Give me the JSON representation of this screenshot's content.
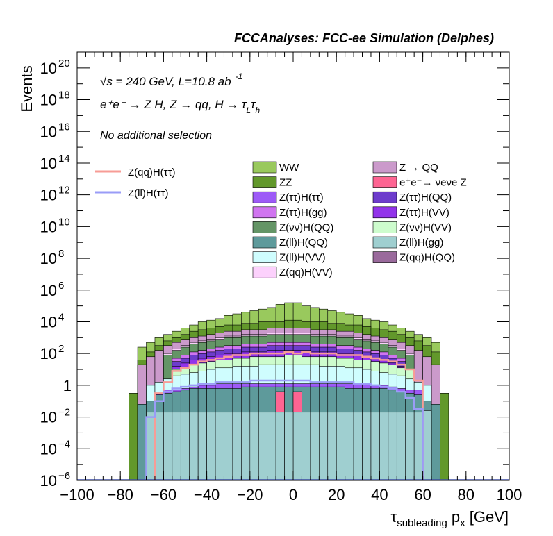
{
  "header": {
    "title": "FCCAnalyses: FCC-ee Simulation (Delphes)"
  },
  "annotations": {
    "energy": "√s = 240 GeV, L=10.8 ab",
    "energy_exp": "-1",
    "process": "e⁺e⁻ → Z H, Z → qq, H → τ",
    "process_sub1": "L",
    "process_tau": "τ",
    "process_sub2": "h",
    "selection": "No additional selection"
  },
  "chart_data": {
    "type": "bar",
    "stacked": true,
    "log_y": true,
    "xlabel": "τsubleading px [GeV]",
    "xlabel_parts": {
      "main": "τ",
      "sub": "subleading",
      "p": " p",
      "psub": "x",
      "unit": " [GeV]"
    },
    "ylabel": "Events",
    "xlim": [
      -100,
      100
    ],
    "ylim_exp": [
      -6,
      21
    ],
    "bin_width": 4,
    "x_ticks": [
      "−100",
      "−80",
      "−60",
      "−40",
      "−20",
      "0",
      "20",
      "40",
      "60",
      "80",
      "100"
    ],
    "y_ticks": [
      {
        "exp": -6,
        "label": "10",
        "sup": "−6"
      },
      {
        "exp": -4,
        "label": "10",
        "sup": "−4"
      },
      {
        "exp": -2,
        "label": "10",
        "sup": "−2"
      },
      {
        "exp": 0,
        "label": "1",
        "sup": ""
      },
      {
        "exp": 2,
        "label": "10",
        "sup": "2"
      },
      {
        "exp": 4,
        "label": "10",
        "sup": "4"
      },
      {
        "exp": 6,
        "label": "10",
        "sup": "6"
      },
      {
        "exp": 8,
        "label": "10",
        "sup": "8"
      },
      {
        "exp": 10,
        "label": "10",
        "sup": "10"
      },
      {
        "exp": 12,
        "label": "10",
        "sup": "12"
      },
      {
        "exp": 14,
        "label": "10",
        "sup": "14"
      },
      {
        "exp": 16,
        "label": "10",
        "sup": "16"
      },
      {
        "exp": 18,
        "label": "10",
        "sup": "18"
      },
      {
        "exp": 20,
        "label": "10",
        "sup": "20"
      }
    ],
    "stack_layers": [
      {
        "name": "Z(ll)H(gg)",
        "color": "#9fcfd0",
        "log10_top": {
          "-66": -1.7,
          "-62": -1.7,
          "-58": -1.7,
          "-54": -1.7,
          "-50": -1.7,
          "-46": -1.7,
          "-42": -1.7,
          "-38": -1.7,
          "-34": -1.7,
          "-30": -1.7,
          "-26": -1.7,
          "-22": -1.7,
          "-18": -1.7,
          "-14": -1.7,
          "-10": -1.7,
          "-6": -1.7,
          "-2": -1.7,
          "2": -1.7,
          "6": -1.7,
          "10": -1.7,
          "14": -1.7,
          "18": -1.7,
          "22": -1.7,
          "26": -1.7,
          "30": -1.7,
          "34": -1.7,
          "38": -1.7,
          "42": -1.7,
          "46": -1.7,
          "50": -1.7,
          "54": -1.7,
          "58": -1.7,
          "62": -1.6
        }
      },
      {
        "name": "Z(qq)H(QQ)",
        "color": "#9a6a9c",
        "log10_top": {
          "-6": -3.5
        }
      },
      {
        "name": "e+e- → νeνe Z",
        "color": "#fe6492",
        "log10_top": {
          "-6": -0.4,
          "2": -0.4
        }
      },
      {
        "name": "Z(ll)H(QQ)",
        "color": "#5e9a9b",
        "log10_top": {
          "-70": -1.2,
          "-66": -1.0,
          "-62": -0.6,
          "-58": -0.5,
          "-54": -0.4,
          "-50": -0.3,
          "-46": -0.2,
          "-42": -0.2,
          "-38": -0.2,
          "-34": -0.2,
          "-30": -0.2,
          "-26": -0.2,
          "-22": -0.1,
          "-18": -0.1,
          "-14": -0.1,
          "-10": -0.1,
          "-6": -0.1,
          "-2": -0.1,
          "2": -0.1,
          "6": -0.1,
          "10": -0.1,
          "14": -0.1,
          "18": -0.1,
          "22": -0.1,
          "26": -0.2,
          "30": -0.2,
          "34": -0.2,
          "38": -0.2,
          "42": -0.2,
          "46": -0.3,
          "50": -0.4,
          "54": -0.5,
          "58": -0.6,
          "62": -1.0,
          "66": -1.2
        }
      },
      {
        "name": "Z(ττ)H(ττ)",
        "color": "#9d5af7",
        "log10_top": {
          "-62": -0.5,
          "-58": -0.3,
          "-54": -0.3,
          "-50": -0.2,
          "-46": -0.1,
          "-42": 0.0,
          "-38": 0.0,
          "-34": 0.1,
          "-30": 0.1,
          "-26": 0.1,
          "-22": 0.1,
          "-18": 0.1,
          "-14": 0.1,
          "-10": 0.1,
          "-6": 0.1,
          "-2": 0.1,
          "2": 0.1,
          "6": 0.1,
          "10": 0.1,
          "14": 0.1,
          "18": 0.1,
          "22": 0.1,
          "26": 0.1,
          "30": 0.1,
          "34": 0.1,
          "38": 0.0,
          "42": 0.0,
          "46": -0.1,
          "50": -0.2,
          "54": -0.3,
          "58": -0.3
        }
      },
      {
        "name": "Z(ll)H(VV)",
        "color": "#cffdfe",
        "log10_top": {
          "-66": 0.0,
          "-62": 0.2,
          "-58": 0.4,
          "-54": 0.6,
          "-50": 0.7,
          "-46": 0.8,
          "-42": 0.9,
          "-38": 1.0,
          "-34": 1.1,
          "-30": 1.1,
          "-26": 1.2,
          "-22": 1.2,
          "-18": 1.2,
          "-14": 1.3,
          "-10": 1.3,
          "-6": 1.3,
          "-2": 1.3,
          "2": 1.3,
          "6": 1.3,
          "10": 1.3,
          "14": 1.2,
          "18": 1.2,
          "22": 1.2,
          "26": 1.1,
          "30": 1.1,
          "34": 1.0,
          "38": 0.9,
          "42": 0.8,
          "46": 0.7,
          "50": 0.6,
          "54": 0.4,
          "58": 0.2,
          "62": 0.0
        }
      },
      {
        "name": "Z(νν)H(VV)",
        "color": "#cdfccd",
        "log10_top": {
          "-54": 1.0,
          "-50": 1.1,
          "-46": 1.3,
          "-42": 1.4,
          "-38": 1.5,
          "-34": 1.6,
          "-30": 1.6,
          "-26": 1.7,
          "-22": 1.7,
          "-18": 1.8,
          "-14": 1.8,
          "-10": 1.8,
          "-6": 1.8,
          "-2": 1.9,
          "2": 1.9,
          "6": 1.8,
          "10": 1.8,
          "14": 1.8,
          "18": 1.8,
          "22": 1.7,
          "26": 1.7,
          "30": 1.6,
          "34": 1.6,
          "38": 1.5,
          "42": 1.4,
          "46": 1.3,
          "50": 1.1,
          "54": 1.0
        }
      },
      {
        "name": "Z(ττ)H(VV)",
        "color": "#9233ea",
        "log10_top": {
          "-54": 1.2,
          "-50": 1.4,
          "-46": 1.6,
          "-42": 1.7,
          "-38": 1.8,
          "-34": 1.9,
          "-30": 2.0,
          "-26": 2.0,
          "-22": 2.1,
          "-18": 2.1,
          "-14": 2.1,
          "-10": 2.2,
          "-6": 2.2,
          "-2": 2.2,
          "2": 2.2,
          "6": 2.2,
          "10": 2.1,
          "14": 2.1,
          "18": 2.1,
          "22": 2.0,
          "26": 2.0,
          "30": 1.9,
          "34": 1.8,
          "38": 1.7,
          "42": 1.6,
          "46": 1.4,
          "50": 1.2
        }
      },
      {
        "name": "Z(ττ)H(QQ)",
        "color": "#6d3ccc",
        "log10_top": {
          "-54": 1.5,
          "-50": 1.7,
          "-46": 1.9,
          "-42": 2.0,
          "-38": 2.1,
          "-34": 2.2,
          "-30": 2.3,
          "-26": 2.3,
          "-22": 2.4,
          "-18": 2.4,
          "-14": 2.4,
          "-10": 2.5,
          "-6": 2.5,
          "-2": 2.5,
          "2": 2.5,
          "6": 2.5,
          "10": 2.4,
          "14": 2.4,
          "18": 2.4,
          "22": 2.3,
          "26": 2.3,
          "30": 2.2,
          "34": 2.1,
          "38": 2.0,
          "42": 1.9,
          "46": 1.7,
          "50": 1.5
        }
      },
      {
        "name": "Z(ττ)H(gg)",
        "color": "#d075f0",
        "log10_top": {
          "-54": 1.7,
          "-50": 1.9,
          "-46": 2.1,
          "-42": 2.2,
          "-38": 2.3,
          "-34": 2.4,
          "-30": 2.5,
          "-26": 2.5,
          "-22": 2.6,
          "-18": 2.6,
          "-14": 2.6,
          "-10": 2.7,
          "-6": 2.7,
          "-2": 2.7,
          "2": 2.7,
          "6": 2.7,
          "10": 2.6,
          "14": 2.6,
          "18": 2.6,
          "22": 2.5,
          "26": 2.5,
          "30": 2.4,
          "34": 2.3,
          "38": 2.2,
          "42": 2.1,
          "46": 1.9,
          "50": 1.7
        }
      },
      {
        "name": "Z(νν)H(QQ)",
        "color": "#649566",
        "log10_top": {
          "-58": 1.9,
          "-54": 2.2,
          "-50": 2.4,
          "-46": 2.6,
          "-42": 2.7,
          "-38": 2.8,
          "-34": 2.9,
          "-30": 3.0,
          "-26": 3.0,
          "-22": 3.1,
          "-18": 3.1,
          "-14": 3.1,
          "-10": 3.2,
          "-6": 3.2,
          "-2": 3.2,
          "2": 3.2,
          "6": 3.2,
          "10": 3.1,
          "14": 3.1,
          "18": 3.1,
          "22": 3.0,
          "26": 3.0,
          "30": 2.9,
          "34": 2.8,
          "38": 2.7,
          "42": 2.6,
          "46": 2.4,
          "50": 2.2,
          "54": 1.9
        }
      },
      {
        "name": "Z(qq)H(VV)",
        "color": "#fcd1fc",
        "log10_top": {
          "-58": 2.0,
          "-54": 2.3,
          "-50": 2.5,
          "-46": 2.7,
          "-42": 2.8,
          "-38": 2.9,
          "-34": 3.0,
          "-30": 3.1,
          "-26": 3.1,
          "-22": 3.2,
          "-18": 3.2,
          "-14": 3.2,
          "-10": 3.3,
          "-6": 3.3,
          "-2": 3.3,
          "2": 3.3,
          "6": 3.3,
          "10": 3.2,
          "14": 3.2,
          "18": 3.2,
          "22": 3.1,
          "26": 3.1,
          "30": 3.0,
          "34": 2.9,
          "38": 2.8,
          "42": 2.7,
          "46": 2.5,
          "50": 2.3,
          "54": 2.0
        }
      },
      {
        "name": "Z → QQ",
        "color": "#cb9acb",
        "log10_top": {
          "-70": 1.3,
          "-66": 1.8,
          "-62": 2.2,
          "-58": 2.5,
          "-54": 2.7,
          "-50": 2.9,
          "-46": 3.0,
          "-42": 3.1,
          "-38": 3.2,
          "-34": 3.3,
          "-30": 3.4,
          "-26": 3.4,
          "-22": 3.5,
          "-18": 3.5,
          "-14": 3.5,
          "-10": 3.6,
          "-6": 3.6,
          "-2": 3.6,
          "2": 3.6,
          "6": 3.6,
          "10": 3.5,
          "14": 3.5,
          "18": 3.5,
          "22": 3.4,
          "26": 3.4,
          "30": 3.3,
          "34": 3.2,
          "38": 3.1,
          "42": 3.0,
          "46": 2.9,
          "50": 2.7,
          "54": 2.5,
          "58": 2.2,
          "62": 1.8,
          "66": 1.3
        }
      },
      {
        "name": "ZZ",
        "color": "#62982b",
        "log10_top": {
          "-74": -0.5,
          "-70": 1.6,
          "-66": 2.1,
          "-62": 2.5,
          "-58": 2.8,
          "-54": 3.0,
          "-50": 3.2,
          "-46": 3.4,
          "-42": 3.5,
          "-38": 3.6,
          "-34": 3.7,
          "-30": 3.8,
          "-26": 3.8,
          "-22": 3.9,
          "-18": 3.9,
          "-14": 4.0,
          "-10": 4.0,
          "-6": 4.0,
          "-2": 4.1,
          "2": 4.1,
          "6": 4.0,
          "10": 4.0,
          "14": 4.0,
          "18": 3.9,
          "22": 3.9,
          "26": 3.8,
          "30": 3.8,
          "34": 3.7,
          "38": 3.6,
          "42": 3.5,
          "46": 3.4,
          "50": 3.2,
          "54": 3.0,
          "58": 2.8,
          "62": 2.5,
          "66": 2.1,
          "70": -0.5
        }
      },
      {
        "name": "WW",
        "color": "#99c95d",
        "log10_top": {
          "-70": 2.4,
          "-66": 2.7,
          "-62": 3.0,
          "-58": 3.2,
          "-54": 3.4,
          "-50": 3.6,
          "-46": 3.8,
          "-42": 4.0,
          "-38": 4.1,
          "-34": 4.2,
          "-30": 4.4,
          "-26": 4.5,
          "-22": 4.6,
          "-18": 4.7,
          "-14": 4.8,
          "-10": 4.9,
          "-6": 5.1,
          "-2": 5.2,
          "2": 5.2,
          "6": 5.0,
          "10": 4.9,
          "14": 4.8,
          "18": 4.7,
          "22": 4.6,
          "26": 4.5,
          "30": 4.4,
          "34": 4.2,
          "38": 4.1,
          "42": 4.0,
          "46": 3.8,
          "50": 3.6,
          "54": 3.4,
          "58": 3.2,
          "62": 3.0,
          "66": 2.7
        }
      }
    ],
    "signal_lines": [
      {
        "name": "Z(qq)H(ττ)",
        "color": "#f79c96",
        "log10_values": {
          "-62": -0.5,
          "-58": 0.2,
          "-54": 0.9,
          "-50": 1.1,
          "-46": 1.3,
          "-42": 1.5,
          "-38": 1.6,
          "-34": 1.7,
          "-30": 1.8,
          "-26": 1.9,
          "-22": 1.9,
          "-18": 2.0,
          "-14": 2.0,
          "-10": 2.0,
          "-6": 2.0,
          "-2": 2.1,
          "2": 2.0,
          "6": 2.1,
          "10": 2.0,
          "14": 2.0,
          "18": 2.0,
          "22": 1.9,
          "26": 1.9,
          "30": 1.9,
          "34": 1.8,
          "38": 1.7,
          "42": 1.6,
          "46": 1.5,
          "50": 1.3,
          "54": 1.0,
          "58": 0.3
        }
      },
      {
        "name": "Z(ll)H(ττ)",
        "color": "#9a9cf7",
        "log10_values": {
          "-66": -2.0,
          "-62": -1.0,
          "-58": -0.4,
          "-54": -0.2,
          "-50": -0.1,
          "-46": 0.0,
          "-42": 0.1,
          "-38": 0.1,
          "-34": 0.2,
          "-30": 0.2,
          "-26": 0.2,
          "-22": 0.2,
          "-18": 0.3,
          "-14": 0.3,
          "-10": 0.3,
          "-6": 0.3,
          "-2": 0.3,
          "2": 0.3,
          "6": 0.3,
          "10": 0.2,
          "14": 0.2,
          "18": 0.2,
          "22": 0.2,
          "26": 0.2,
          "30": 0.1,
          "34": 0.1,
          "38": 0.0,
          "42": -0.1,
          "46": -0.2,
          "50": -0.4,
          "54": -0.8,
          "58": -1.5
        }
      }
    ],
    "legend_left": [
      {
        "label": "Z(qq)H(ττ)",
        "color": "#f79c96"
      },
      {
        "label": "Z(ll)H(ττ)",
        "color": "#9a9cf7"
      }
    ],
    "legend_col1": [
      {
        "label": "WW",
        "color": "#99c95d"
      },
      {
        "label": "ZZ",
        "color": "#62982b"
      },
      {
        "label": "Z(ττ)H(ττ)",
        "color": "#9d5af7"
      },
      {
        "label": "Z(ττ)H(gg)",
        "color": "#d075f0"
      },
      {
        "label": "Z(νν)H(QQ)",
        "color": "#649566"
      },
      {
        "label": "Z(ll)H(QQ)",
        "color": "#5e9a9b"
      },
      {
        "label": "Z(ll)H(VV)",
        "color": "#cffdfe"
      },
      {
        "label": "Z(qq)H(VV)",
        "color": "#fcd1fc"
      }
    ],
    "legend_col2": [
      {
        "label": "Z → QQ",
        "color": "#cb9acb"
      },
      {
        "label": "e⁺e⁻→ νeνe Z",
        "color": "#fe6492"
      },
      {
        "label": "Z(ττ)H(QQ)",
        "color": "#6d3ccc"
      },
      {
        "label": "Z(ττ)H(VV)",
        "color": "#9233ea"
      },
      {
        "label": "Z(νν)H(VV)",
        "color": "#cdfccd"
      },
      {
        "label": "Z(ll)H(gg)",
        "color": "#9fcfd0"
      },
      {
        "label": "Z(qq)H(QQ)",
        "color": "#9a6a9c"
      }
    ]
  }
}
